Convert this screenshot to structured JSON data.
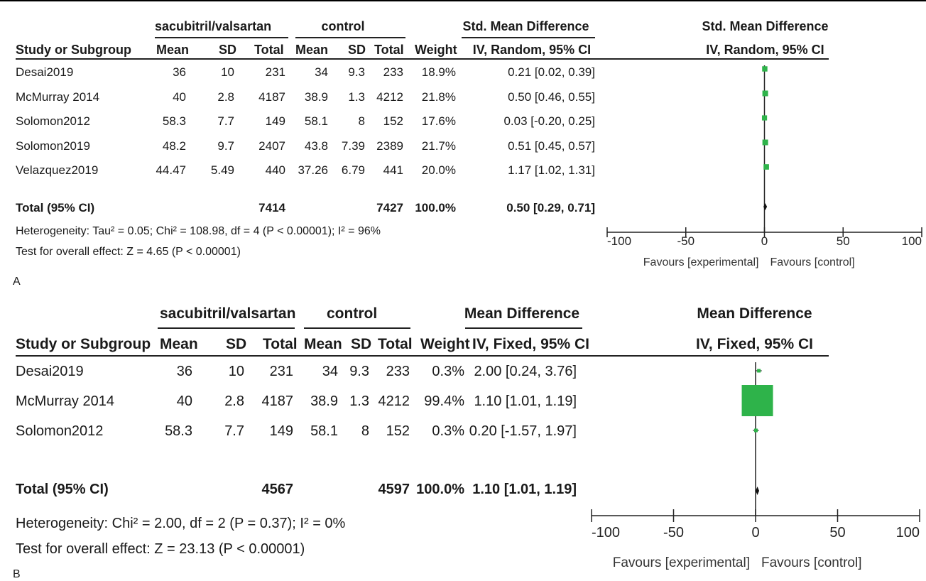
{
  "panels": [
    {
      "letter": "A",
      "group_exp": "sacubitril/valsartan",
      "group_ctl": "control",
      "col_study": "Study or Subgroup",
      "col_mean": "Mean",
      "col_sd": "SD",
      "col_total": "Total",
      "col_weight": "Weight",
      "effect_header": "Std. Mean Difference",
      "effect_sub": "IV, Random, 95% CI",
      "plot_header": "Std. Mean Difference",
      "plot_sub": "IV, Random, 95% CI",
      "rows": [
        {
          "study": "Desai2019",
          "m1": "36",
          "sd1": "10",
          "n1": "231",
          "m2": "34",
          "sd2": "9.3",
          "n2": "233",
          "weight": "18.9%",
          "ci": "0.21 [0.02, 0.39]"
        },
        {
          "study": "McMurray 2014",
          "m1": "40",
          "sd1": "2.8",
          "n1": "4187",
          "m2": "38.9",
          "sd2": "1.3",
          "n2": "4212",
          "weight": "21.8%",
          "ci": "0.50 [0.46, 0.55]"
        },
        {
          "study": "Solomon2012",
          "m1": "58.3",
          "sd1": "7.7",
          "n1": "149",
          "m2": "58.1",
          "sd2": "8",
          "n2": "152",
          "weight": "17.6%",
          "ci": "0.03 [-0.20, 0.25]"
        },
        {
          "study": "Solomon2019",
          "m1": "48.2",
          "sd1": "9.7",
          "n1": "2407",
          "m2": "43.8",
          "sd2": "7.39",
          "n2": "2389",
          "weight": "21.7%",
          "ci": "0.51 [0.45, 0.57]"
        },
        {
          "study": "Velazquez2019",
          "m1": "44.47",
          "sd1": "5.49",
          "n1": "440",
          "m2": "37.26",
          "sd2": "6.79",
          "n2": "441",
          "weight": "20.0%",
          "ci": "1.17 [1.02, 1.31]"
        }
      ],
      "total": {
        "label": "Total (95% CI)",
        "n1": "7414",
        "n2": "7427",
        "weight": "100.0%",
        "ci": "0.50 [0.29, 0.71]"
      },
      "heterogeneity": "Heterogeneity: Tau² = 0.05; Chi² = 108.98, df = 4 (P < 0.00001); I² = 96%",
      "overall": "Test for overall effect: Z = 4.65 (P < 0.00001)",
      "favours_left": "Favours [experimental]",
      "favours_right": "Favours [control]"
    },
    {
      "letter": "B",
      "group_exp": "sacubitril/valsartan",
      "group_ctl": "control",
      "col_study": "Study or Subgroup",
      "col_mean": "Mean",
      "col_sd": "SD",
      "col_total": "Total",
      "col_weight": "Weight",
      "effect_header": "Mean Difference",
      "effect_sub": "IV, Fixed, 95% CI",
      "plot_header": "Mean Difference",
      "plot_sub": "IV, Fixed, 95% CI",
      "rows": [
        {
          "study": "Desai2019",
          "m1": "36",
          "sd1": "10",
          "n1": "231",
          "m2": "34",
          "sd2": "9.3",
          "n2": "233",
          "weight": "0.3%",
          "ci": "2.00 [0.24, 3.76]"
        },
        {
          "study": "McMurray 2014",
          "m1": "40",
          "sd1": "2.8",
          "n1": "4187",
          "m2": "38.9",
          "sd2": "1.3",
          "n2": "4212",
          "weight": "99.4%",
          "ci": "1.10 [1.01, 1.19]"
        },
        {
          "study": "Solomon2012",
          "m1": "58.3",
          "sd1": "7.7",
          "n1": "149",
          "m2": "58.1",
          "sd2": "8",
          "n2": "152",
          "weight": "0.3%",
          "ci": "0.20 [-1.57, 1.97]"
        }
      ],
      "total": {
        "label": "Total (95% CI)",
        "n1": "4567",
        "n2": "4597",
        "weight": "100.0%",
        "ci": "1.10 [1.01, 1.19]"
      },
      "heterogeneity": "Heterogeneity: Chi² = 2.00, df = 2 (P = 0.37); I² = 0%",
      "overall": "Test for overall effect: Z = 23.13 (P < 0.00001)",
      "favours_left": "Favours [experimental]",
      "favours_right": "Favours [control]"
    }
  ],
  "chart_data": [
    {
      "type": "forest",
      "xlim": [
        -100,
        100
      ],
      "xticks": [
        "-100",
        "-50",
        "0",
        "50",
        "100"
      ],
      "marker_color": "#2eb34a",
      "studies": [
        {
          "name": "Desai2019",
          "est": 0.21,
          "lo": 0.02,
          "hi": 0.39,
          "weight": 18.9
        },
        {
          "name": "McMurray 2014",
          "est": 0.5,
          "lo": 0.46,
          "hi": 0.55,
          "weight": 21.8
        },
        {
          "name": "Solomon2012",
          "est": 0.03,
          "lo": -0.2,
          "hi": 0.25,
          "weight": 17.6
        },
        {
          "name": "Solomon2019",
          "est": 0.51,
          "lo": 0.45,
          "hi": 0.57,
          "weight": 21.7
        },
        {
          "name": "Velazquez2019",
          "est": 1.17,
          "lo": 1.02,
          "hi": 1.31,
          "weight": 20.0
        }
      ],
      "pooled": {
        "est": 0.5,
        "lo": 0.29,
        "hi": 0.71
      }
    },
    {
      "type": "forest",
      "xlim": [
        -100,
        100
      ],
      "xticks": [
        "-100",
        "-50",
        "0",
        "50",
        "100"
      ],
      "marker_color": "#2eb34a",
      "studies": [
        {
          "name": "Desai2019",
          "est": 2.0,
          "lo": 0.24,
          "hi": 3.76,
          "weight": 0.3
        },
        {
          "name": "McMurray 2014",
          "est": 1.1,
          "lo": 1.01,
          "hi": 1.19,
          "weight": 99.4
        },
        {
          "name": "Solomon2012",
          "est": 0.2,
          "lo": -1.57,
          "hi": 1.97,
          "weight": 0.3
        }
      ],
      "pooled": {
        "est": 1.1,
        "lo": 1.01,
        "hi": 1.19
      }
    }
  ]
}
